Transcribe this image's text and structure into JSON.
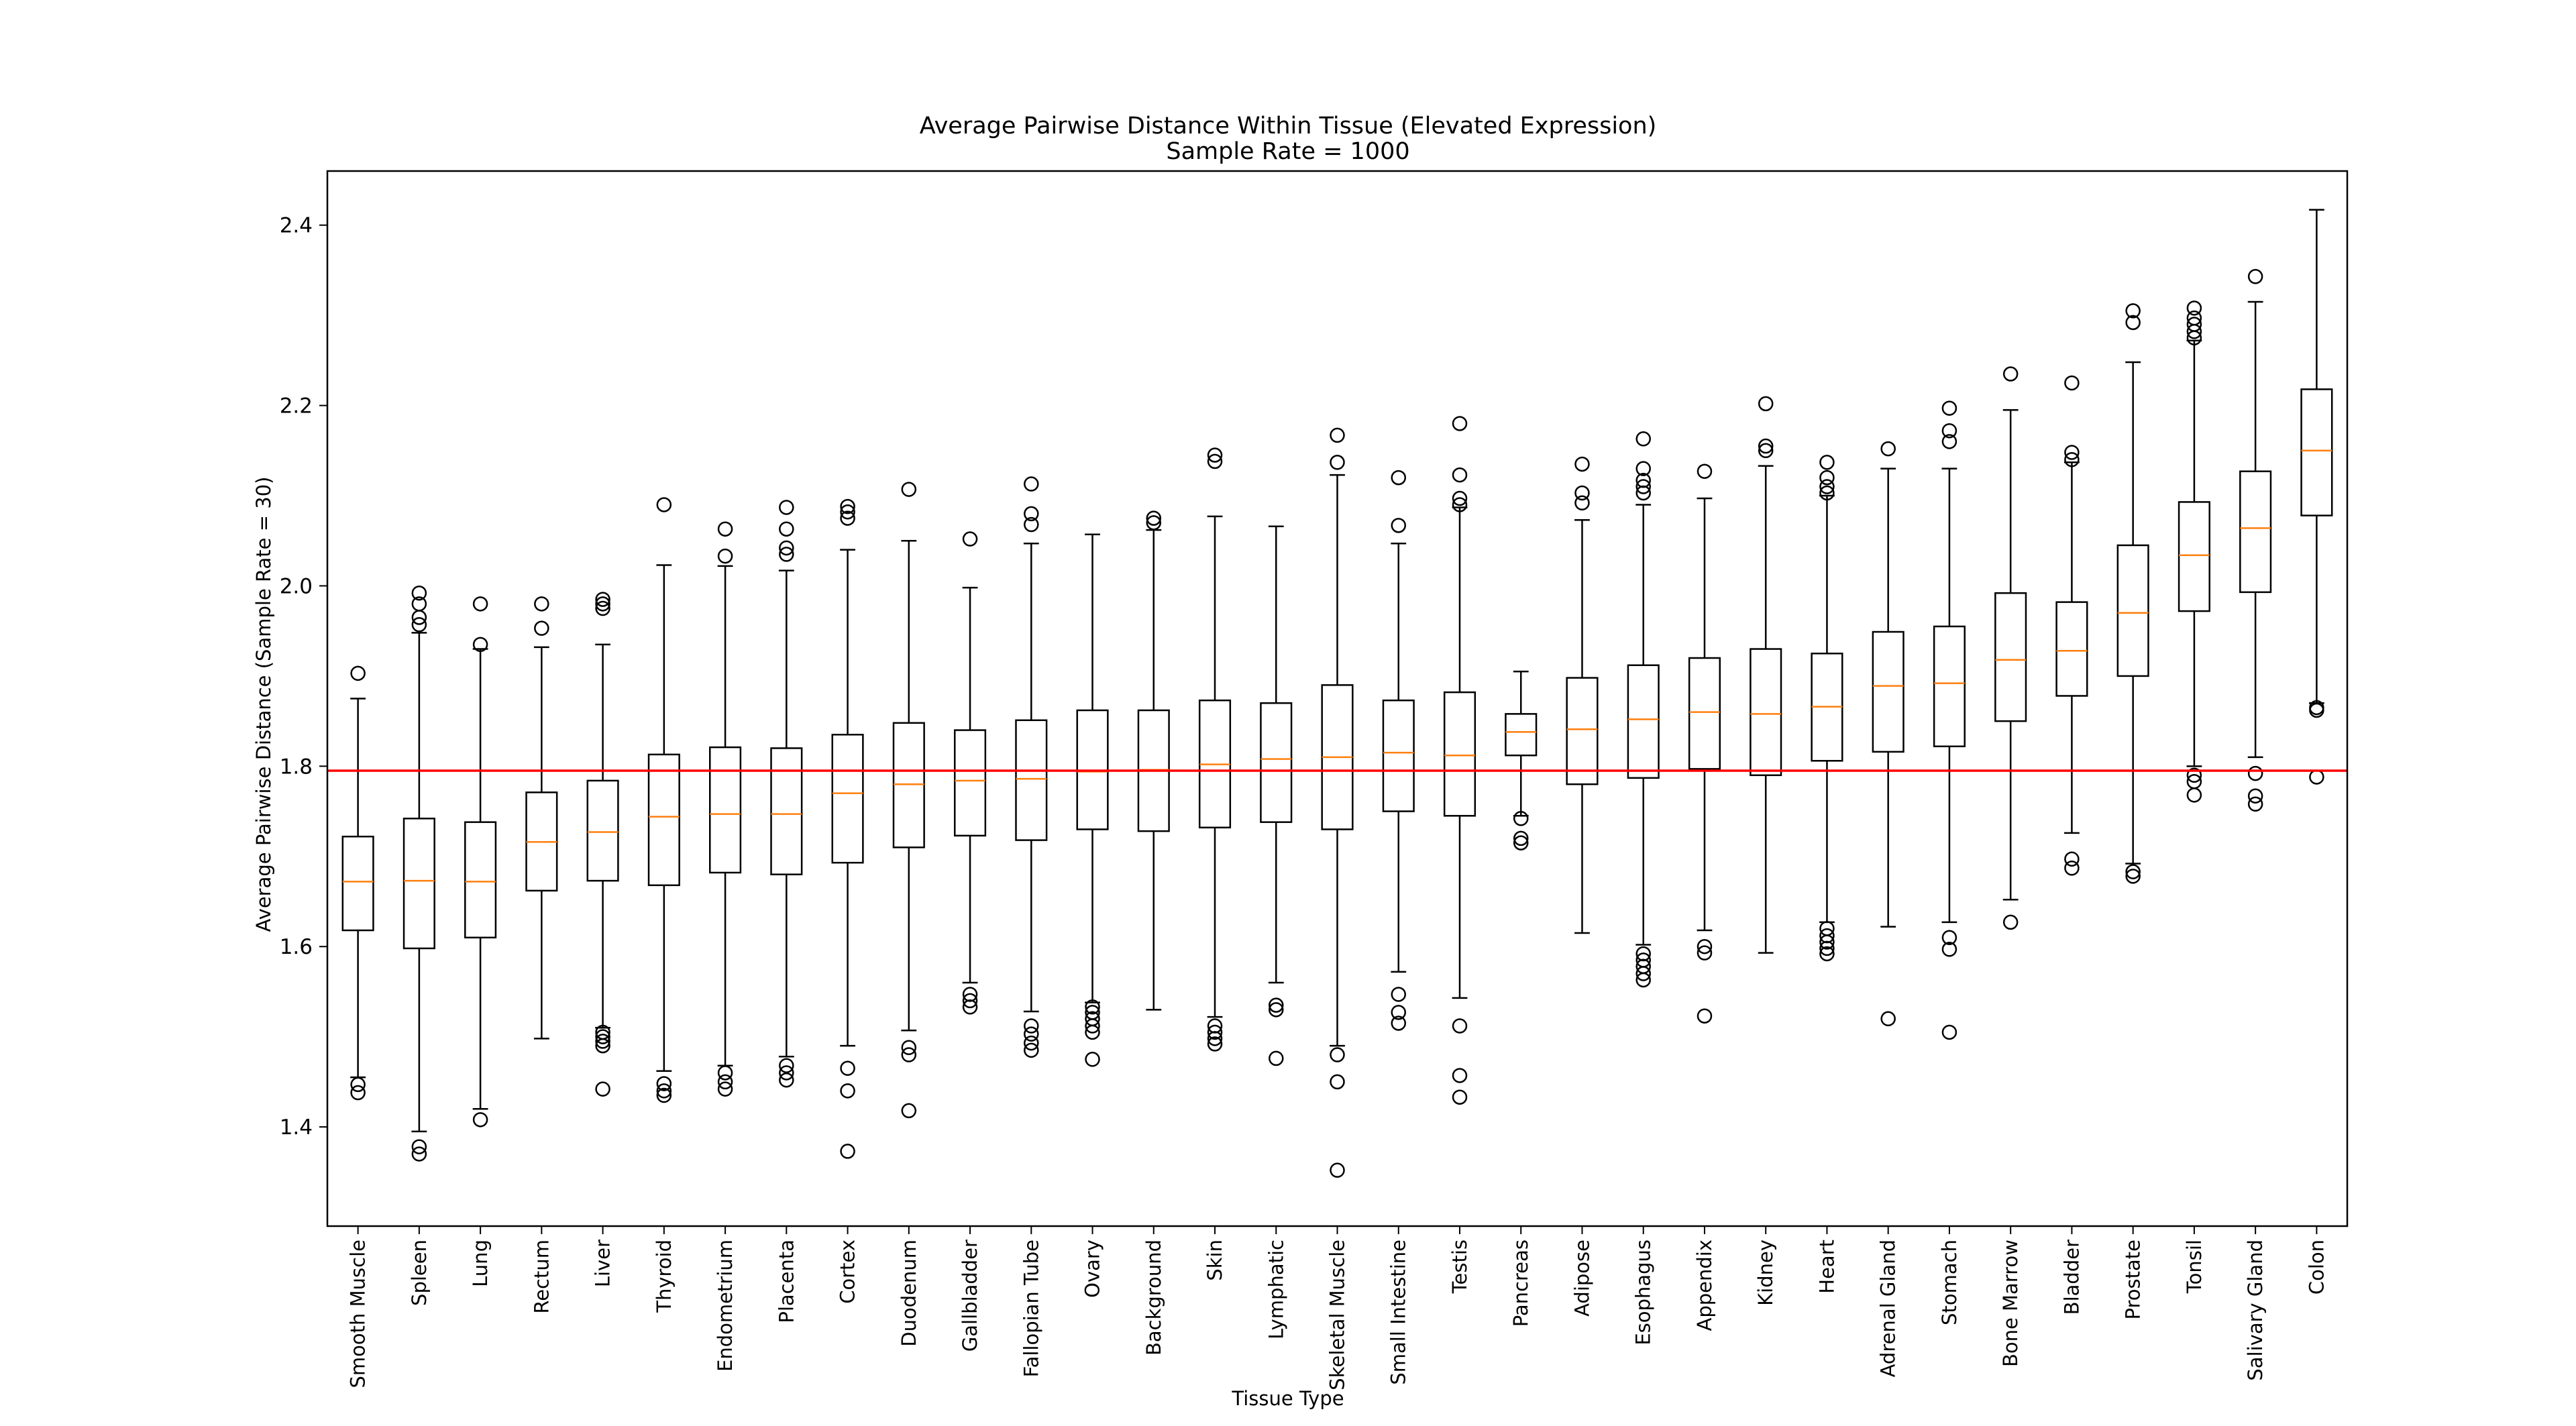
{
  "chart_data": {
    "type": "boxplot",
    "title": "Average Pairwise Distance Within Tissue (Elevated Expression)",
    "subtitle": "Sample Rate = 1000",
    "xlabel": "Tissue Type",
    "ylabel": "Average Pairwise Distance (Sample Rate = 30)",
    "ylim": [
      1.29,
      2.46
    ],
    "yticks": [
      1.4,
      1.6,
      1.8,
      2.0,
      2.2,
      2.4
    ],
    "reference_line": {
      "y": 1.795,
      "color": "#ff0000"
    },
    "colors": {
      "box": "#000000",
      "median": "#ff7f0e",
      "outlier": "#000000"
    },
    "grid": false,
    "categories": [
      "Smooth Muscle",
      "Spleen",
      "Lung",
      "Rectum",
      "Liver",
      "Thyroid",
      "Endometrium",
      "Placenta",
      "Cortex",
      "Duodenum",
      "Gallbladder",
      "Fallopian Tube",
      "Ovary",
      "Background",
      "Skin",
      "Lymphatic",
      "Skeletal Muscle",
      "Small Intestine",
      "Testis",
      "Pancreas",
      "Adipose",
      "Esophagus",
      "Appendix",
      "Kidney",
      "Heart",
      "Adrenal Gland",
      "Stomach",
      "Bone Marrow",
      "Bladder",
      "Prostate",
      "Tonsil",
      "Salivary Gland",
      "Colon"
    ],
    "boxes": [
      {
        "wlo": 1.455,
        "q1": 1.618,
        "med": 1.672,
        "q3": 1.722,
        "whi": 1.875,
        "out": [
          1.438,
          1.447,
          1.903
        ]
      },
      {
        "wlo": 1.395,
        "q1": 1.598,
        "med": 1.673,
        "q3": 1.742,
        "whi": 1.948,
        "out": [
          1.37,
          1.378,
          1.957,
          1.965,
          1.98,
          1.992
        ]
      },
      {
        "wlo": 1.42,
        "q1": 1.61,
        "med": 1.672,
        "q3": 1.738,
        "whi": 1.93,
        "out": [
          1.408,
          1.935,
          1.98
        ]
      },
      {
        "wlo": 1.498,
        "q1": 1.662,
        "med": 1.716,
        "q3": 1.771,
        "whi": 1.932,
        "out": [
          1.953,
          1.98
        ]
      },
      {
        "wlo": 1.51,
        "q1": 1.673,
        "med": 1.727,
        "q3": 1.784,
        "whi": 1.935,
        "out": [
          1.442,
          1.49,
          1.495,
          1.5,
          1.505,
          1.975,
          1.98,
          1.985
        ]
      },
      {
        "wlo": 1.462,
        "q1": 1.668,
        "med": 1.744,
        "q3": 1.813,
        "whi": 2.023,
        "out": [
          1.435,
          1.44,
          1.448,
          2.09
        ]
      },
      {
        "wlo": 1.468,
        "q1": 1.682,
        "med": 1.747,
        "q3": 1.821,
        "whi": 2.022,
        "out": [
          1.442,
          1.45,
          1.46,
          2.033,
          2.063
        ]
      },
      {
        "wlo": 1.478,
        "q1": 1.68,
        "med": 1.747,
        "q3": 1.82,
        "whi": 2.017,
        "out": [
          1.452,
          1.46,
          1.468,
          2.035,
          2.042,
          2.063,
          2.087
        ]
      },
      {
        "wlo": 1.49,
        "q1": 1.693,
        "med": 1.77,
        "q3": 1.835,
        "whi": 2.04,
        "out": [
          1.373,
          1.44,
          1.465,
          2.075,
          2.082,
          2.088
        ]
      },
      {
        "wlo": 1.507,
        "q1": 1.71,
        "med": 1.78,
        "q3": 1.848,
        "whi": 2.05,
        "out": [
          1.418,
          1.48,
          1.488,
          2.107
        ]
      },
      {
        "wlo": 1.56,
        "q1": 1.723,
        "med": 1.784,
        "q3": 1.84,
        "whi": 1.998,
        "out": [
          1.533,
          1.54,
          1.547,
          2.052
        ]
      },
      {
        "wlo": 1.528,
        "q1": 1.718,
        "med": 1.786,
        "q3": 1.851,
        "whi": 2.047,
        "out": [
          1.485,
          1.493,
          1.503,
          1.512,
          2.068,
          2.08,
          2.113
        ]
      },
      {
        "wlo": 1.538,
        "q1": 1.73,
        "med": 1.794,
        "q3": 1.862,
        "whi": 2.057,
        "out": [
          1.475,
          1.505,
          1.512,
          1.52,
          1.527,
          1.533
        ]
      },
      {
        "wlo": 1.53,
        "q1": 1.728,
        "med": 1.796,
        "q3": 1.862,
        "whi": 2.062,
        "out": [
          2.07,
          2.075
        ]
      },
      {
        "wlo": 1.522,
        "q1": 1.732,
        "med": 1.802,
        "q3": 1.873,
        "whi": 2.077,
        "out": [
          1.492,
          1.498,
          1.505,
          1.512,
          2.138,
          2.145
        ]
      },
      {
        "wlo": 1.56,
        "q1": 1.738,
        "med": 1.808,
        "q3": 1.87,
        "whi": 2.066,
        "out": [
          1.476,
          1.53,
          1.535
        ]
      },
      {
        "wlo": 1.49,
        "q1": 1.73,
        "med": 1.81,
        "q3": 1.89,
        "whi": 2.123,
        "out": [
          1.352,
          1.45,
          1.48,
          2.137,
          2.167
        ]
      },
      {
        "wlo": 1.572,
        "q1": 1.75,
        "med": 1.815,
        "q3": 1.873,
        "whi": 2.047,
        "out": [
          1.515,
          1.527,
          1.547,
          2.067,
          2.12
        ]
      },
      {
        "wlo": 1.543,
        "q1": 1.745,
        "med": 1.812,
        "q3": 1.882,
        "whi": 2.087,
        "out": [
          1.433,
          1.457,
          1.512,
          2.09,
          2.097,
          2.123,
          2.18
        ]
      },
      {
        "wlo": 1.745,
        "q1": 1.812,
        "med": 1.838,
        "q3": 1.858,
        "whi": 1.905,
        "out": [
          1.715,
          1.72,
          1.742
        ]
      },
      {
        "wlo": 1.615,
        "q1": 1.78,
        "med": 1.841,
        "q3": 1.898,
        "whi": 2.073,
        "out": [
          2.092,
          2.103,
          2.135
        ]
      },
      {
        "wlo": 1.602,
        "q1": 1.787,
        "med": 1.852,
        "q3": 1.912,
        "whi": 2.09,
        "out": [
          1.563,
          1.57,
          1.578,
          1.585,
          1.592,
          2.103,
          2.11,
          2.117,
          2.13,
          2.163
        ]
      },
      {
        "wlo": 1.618,
        "q1": 1.797,
        "med": 1.86,
        "q3": 1.92,
        "whi": 2.097,
        "out": [
          1.523,
          1.593,
          1.6,
          2.127
        ]
      },
      {
        "wlo": 1.593,
        "q1": 1.79,
        "med": 1.858,
        "q3": 1.93,
        "whi": 2.133,
        "out": [
          2.15,
          2.155,
          2.202
        ]
      },
      {
        "wlo": 1.627,
        "q1": 1.806,
        "med": 1.866,
        "q3": 1.925,
        "whi": 2.1,
        "out": [
          1.592,
          1.598,
          1.605,
          1.612,
          1.62,
          2.103,
          2.11,
          2.12,
          2.137
        ]
      },
      {
        "wlo": 1.622,
        "q1": 1.816,
        "med": 1.889,
        "q3": 1.949,
        "whi": 2.13,
        "out": [
          1.52,
          2.152
        ]
      },
      {
        "wlo": 1.627,
        "q1": 1.822,
        "med": 1.892,
        "q3": 1.955,
        "whi": 2.13,
        "out": [
          1.505,
          1.597,
          1.61,
          2.16,
          2.172,
          2.197
        ]
      },
      {
        "wlo": 1.652,
        "q1": 1.85,
        "med": 1.918,
        "q3": 1.992,
        "whi": 2.195,
        "out": [
          1.627,
          2.235
        ]
      },
      {
        "wlo": 1.726,
        "q1": 1.878,
        "med": 1.928,
        "q3": 1.982,
        "whi": 2.137,
        "out": [
          1.687,
          1.697,
          2.14,
          2.148,
          2.225
        ]
      },
      {
        "wlo": 1.692,
        "q1": 1.9,
        "med": 1.97,
        "q3": 2.045,
        "whi": 2.248,
        "out": [
          1.678,
          1.683,
          2.292,
          2.305
        ]
      },
      {
        "wlo": 1.8,
        "q1": 1.972,
        "med": 2.034,
        "q3": 2.093,
        "whi": 2.272,
        "out": [
          1.768,
          1.783,
          1.79,
          2.275,
          2.282,
          2.29,
          2.297,
          2.308
        ]
      },
      {
        "wlo": 1.81,
        "q1": 1.993,
        "med": 2.064,
        "q3": 2.127,
        "whi": 2.315,
        "out": [
          1.758,
          1.767,
          1.792,
          2.343
        ]
      },
      {
        "wlo": 1.87,
        "q1": 2.078,
        "med": 2.15,
        "q3": 2.218,
        "whi": 2.417,
        "out": [
          1.788,
          1.862,
          1.865
        ]
      }
    ]
  }
}
